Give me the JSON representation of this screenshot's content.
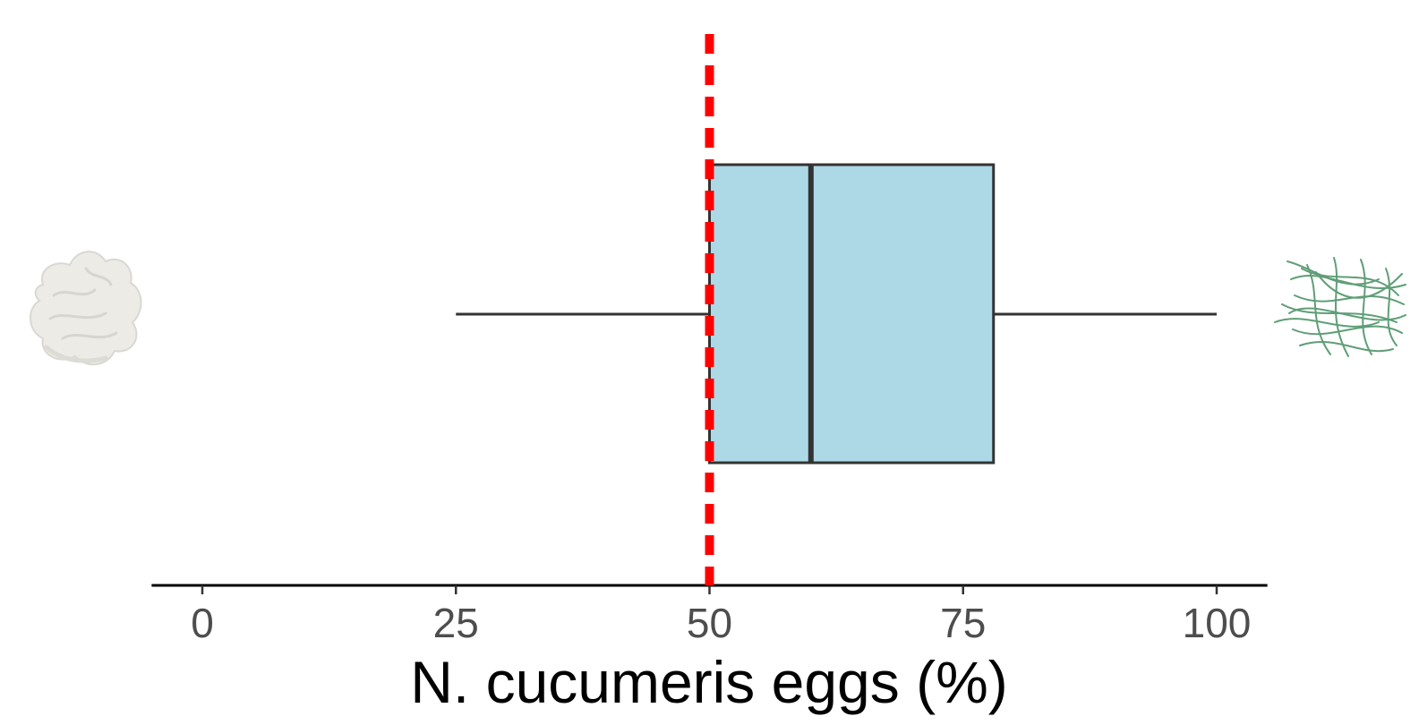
{
  "chart_data": {
    "type": "boxplot",
    "orientation": "horizontal",
    "xlabel": "N. cucumeris eggs  (%)",
    "ylabel": "",
    "title": "",
    "xlim": [
      -5,
      105
    ],
    "xticks": [
      0,
      25,
      50,
      75,
      100
    ],
    "grid": false,
    "legend": "none",
    "box": {
      "whisker_low": 25,
      "q1": 50,
      "median": 60,
      "q3": 78,
      "whisker_high": 100
    },
    "reference_line": {
      "x": 50,
      "style": "dashed"
    },
    "left_icon": "white-fibrous-substrate-icon",
    "right_icon": "green-fibrous-substrate-icon",
    "colors": {
      "box_fill": "#add8e6",
      "box_stroke": "#333333",
      "reference_line": "#ff0000",
      "tick_label": "#4d4d4d",
      "left_icon": "#ecebe6",
      "right_icon": "#5f9e77"
    }
  }
}
